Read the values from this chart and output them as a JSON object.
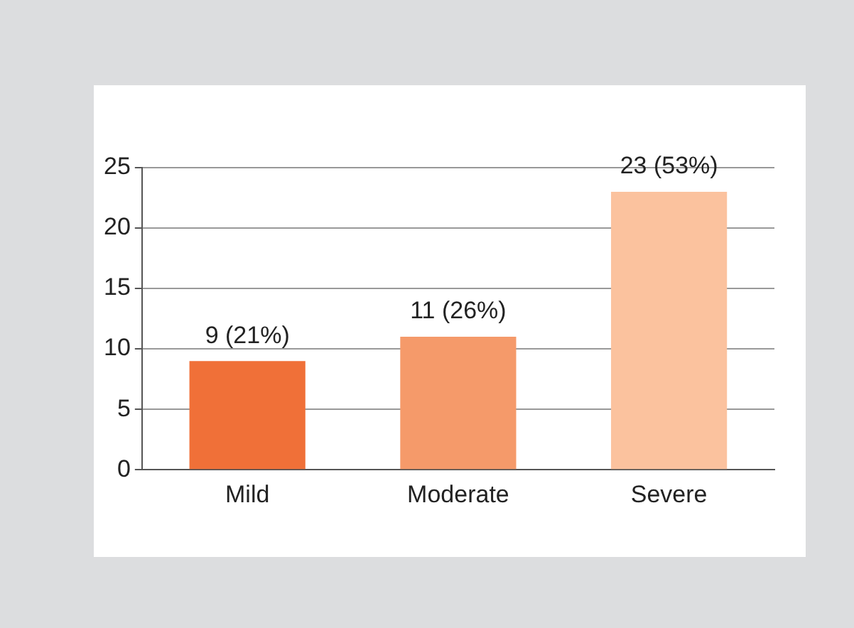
{
  "chart_data": {
    "type": "bar",
    "categories": [
      "Mild",
      "Moderate",
      "Severe"
    ],
    "values": [
      9,
      11,
      23
    ],
    "colors": [
      "#f07038",
      "#f59a6a",
      "#fbc29e"
    ],
    "value_labels": [
      "9 (21%)",
      "11 (26%)",
      "23 (53%)"
    ],
    "ylim": [
      0,
      25
    ],
    "yticks": [
      0,
      5,
      10,
      15,
      20,
      25
    ],
    "grid": "y",
    "legend": false
  }
}
